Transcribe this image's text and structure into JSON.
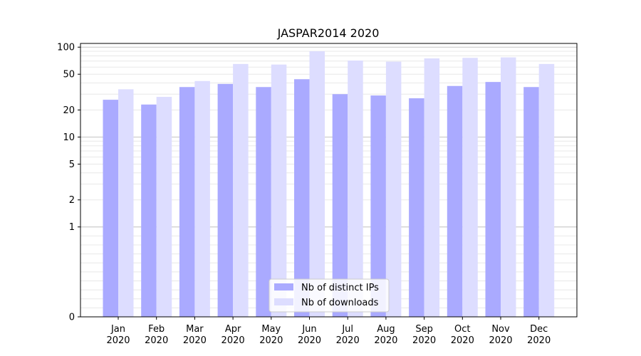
{
  "chart_data": {
    "type": "bar",
    "title": "JASPAR2014 2020",
    "categories": [
      [
        "Jan",
        "2020"
      ],
      [
        "Feb",
        "2020"
      ],
      [
        "Mar",
        "2020"
      ],
      [
        "Apr",
        "2020"
      ],
      [
        "May",
        "2020"
      ],
      [
        "Jun",
        "2020"
      ],
      [
        "Jul",
        "2020"
      ],
      [
        "Aug",
        "2020"
      ],
      [
        "Sep",
        "2020"
      ],
      [
        "Oct",
        "2020"
      ],
      [
        "Nov",
        "2020"
      ],
      [
        "Dec",
        "2020"
      ]
    ],
    "series": [
      {
        "name": "Nb of distinct IPs",
        "color": "#aaaaff",
        "values": [
          26,
          23,
          36,
          39,
          36,
          44,
          30,
          29,
          27,
          37,
          41,
          36
        ]
      },
      {
        "name": "Nb of downloads",
        "color": "#ddddff",
        "values": [
          34,
          28,
          42,
          65,
          64,
          90,
          71,
          69,
          75,
          76,
          77,
          65
        ]
      }
    ],
    "yscale": "symlog",
    "ylim": [
      0,
      110
    ],
    "yticks": [
      0,
      1,
      2,
      5,
      10,
      20,
      50,
      100
    ],
    "xlabel": "",
    "ylabel": "",
    "grid": true,
    "legend_position": "lower center"
  }
}
